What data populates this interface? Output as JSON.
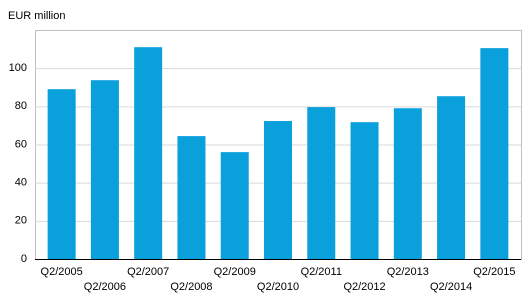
{
  "chart_data": {
    "type": "bar",
    "y_label": "EUR million",
    "categories": [
      "Q2/2005",
      "Q2/2006",
      "Q2/2007",
      "Q2/2008",
      "Q2/2009",
      "Q2/2010",
      "Q2/2011",
      "Q2/2012",
      "Q2/2013",
      "Q2/2014",
      "Q2/2015"
    ],
    "values": [
      89,
      93.7,
      111,
      64.4,
      56,
      72.3,
      79.6,
      71.7,
      79,
      85.3,
      110.5
    ],
    "color": "#0aa0dc",
    "ylim": [
      0,
      120
    ],
    "yticks": [
      0,
      20,
      40,
      60,
      80,
      100
    ],
    "grid": true
  }
}
